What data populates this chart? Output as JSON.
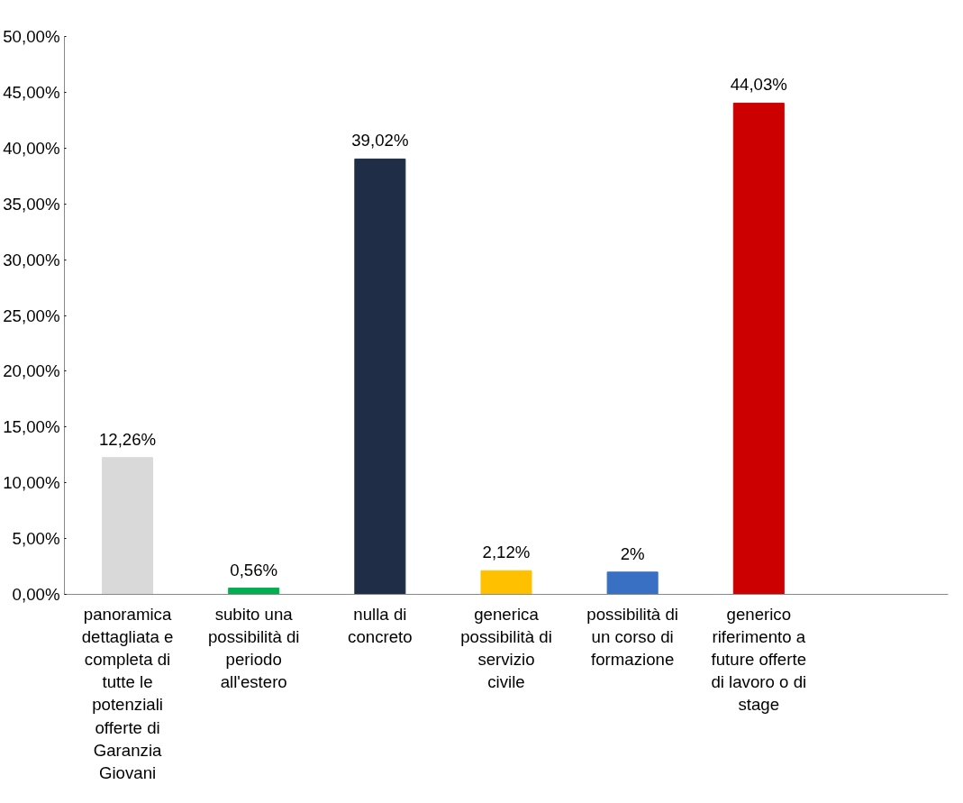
{
  "chart_data": {
    "type": "bar",
    "categories": [
      "panoramica dettagliata e completa di tutte le potenziali offerte di Garanzia Giovani",
      "subito una possibilità di periodo all'estero",
      "nulla di concreto",
      "generica possibilità di servizio civile",
      "possibilità di un corso di formazione",
      "generico riferimento a future offerte di lavoro o di stage",
      null
    ],
    "values": [
      12.26,
      0.56,
      39.02,
      2.12,
      2,
      44.03,
      null
    ],
    "colors": [
      "#d9d9d9",
      "#00b050",
      "#1f2d46",
      "#ffc000",
      "#3a70c4",
      "#cc0000",
      "#ffffff"
    ],
    "value_labels": [
      "12,26%",
      "0,56%",
      "39,02%",
      "2,12%",
      "2%",
      "44,03%",
      null
    ],
    "ylim": [
      0,
      50
    ],
    "yticks": [
      {
        "value": 0,
        "label": "0,00%"
      },
      {
        "value": 5,
        "label": "5,00%"
      },
      {
        "value": 10,
        "label": "10,00%"
      },
      {
        "value": 15,
        "label": "15,00%"
      },
      {
        "value": 20,
        "label": "20,00%"
      },
      {
        "value": 25,
        "label": "25,00%"
      },
      {
        "value": 30,
        "label": "30,00%"
      },
      {
        "value": 35,
        "label": "35,00%"
      },
      {
        "value": 40,
        "label": "40,00%"
      },
      {
        "value": 45,
        "label": "45,00%"
      },
      {
        "value": 50,
        "label": "50,00%"
      }
    ],
    "grid": false
  }
}
